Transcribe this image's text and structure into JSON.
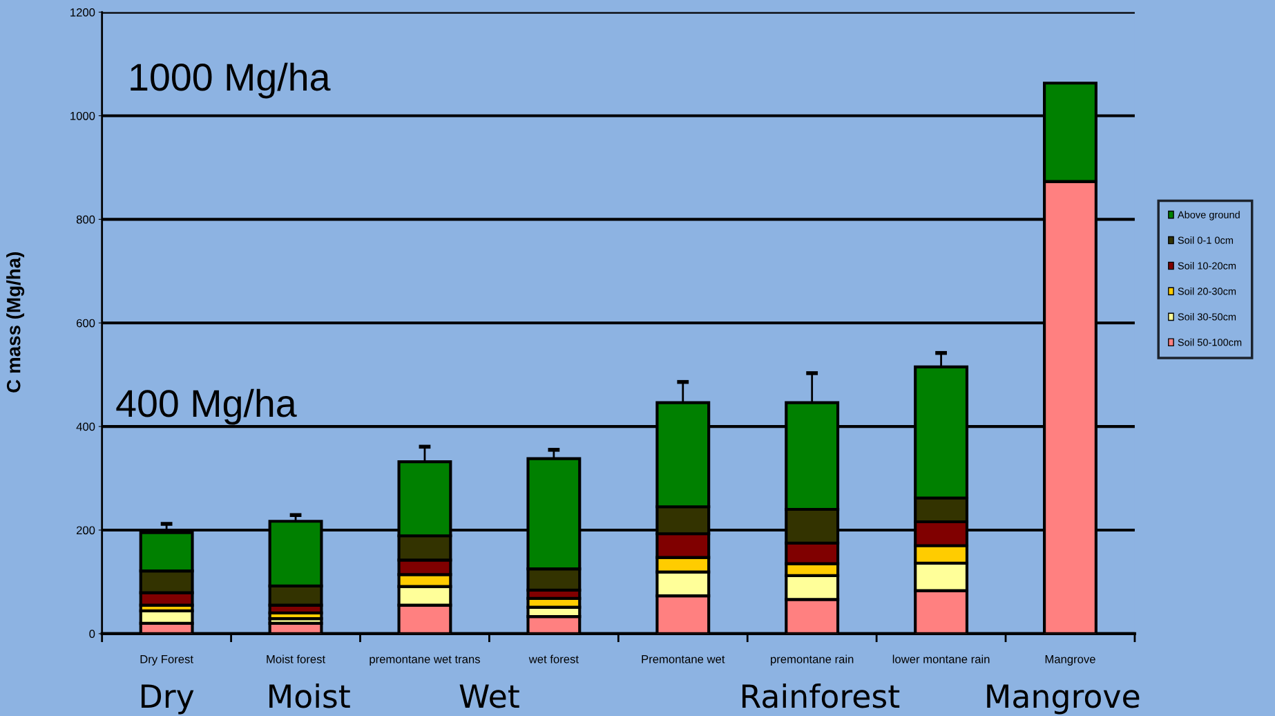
{
  "chart_data": {
    "type": "bar",
    "stacked": true,
    "ylabel": "C mass (Mg/ha)",
    "categories": [
      "Dry Forest",
      "Moist forest",
      "premontane wet trans",
      "wet forest",
      "Premontane wet",
      "premontane rain",
      "lower montane rain",
      "Mangrove"
    ],
    "series": [
      {
        "name": "Soil 50-100cm",
        "color": "#ff8080",
        "values": [
          20,
          20,
          55,
          33,
          73,
          66,
          83,
          873
        ]
      },
      {
        "name": "Soil 30-50cm",
        "color": "#ffff99",
        "values": [
          24,
          9,
          36,
          18,
          46,
          46,
          53,
          0
        ]
      },
      {
        "name": "Soil 20-30cm",
        "color": "#ffcc00",
        "values": [
          11,
          11,
          23,
          17,
          28,
          23,
          34,
          0
        ]
      },
      {
        "name": "Soil 10-20cm",
        "color": "#800000",
        "values": [
          24,
          15,
          28,
          16,
          46,
          40,
          46,
          0
        ]
      },
      {
        "name": "Soil 0-1 0cm",
        "color": "#333300",
        "values": [
          42,
          37,
          47,
          41,
          52,
          65,
          46,
          0
        ]
      },
      {
        "name": "Above ground",
        "color": "#008000",
        "values": [
          74,
          125,
          143,
          213,
          201,
          206,
          253,
          190
        ],
        "errors": [
          [
            195,
            212
          ],
          [
            217,
            229
          ],
          [
            332,
            361
          ],
          [
            338,
            355
          ],
          [
            446,
            486
          ],
          [
            446,
            503
          ],
          [
            515,
            542
          ],
          null
        ]
      }
    ],
    "ylim": [
      0,
      1200
    ],
    "yticks": [
      0,
      200,
      400,
      600,
      800,
      1000,
      1200
    ],
    "grid": "y",
    "legend": "right",
    "annotations": [
      "1000 Mg/ha",
      "400 Mg/ha",
      "Dry",
      "Moist",
      "Wet",
      "Rainforest",
      "Mangrove"
    ]
  }
}
